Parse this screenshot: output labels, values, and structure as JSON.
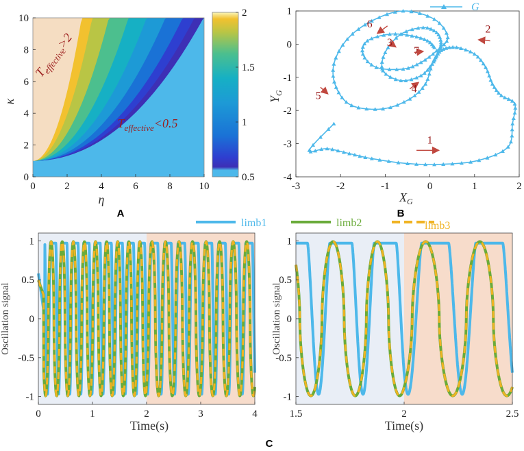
{
  "colors": {
    "limb1": "#4db8ea",
    "limb2": "#6aab3a",
    "limb3": "#f0b323",
    "shade_blue": "#e9eef6",
    "shade_orange": "#f7dccb",
    "annotation": "#9b1c1c",
    "arrow": "#c0483f",
    "heat_bg": "#4db8ea",
    "heat_wedge": "#f5ddc2"
  },
  "chart_data": [
    {
      "id": "A",
      "type": "heatmap",
      "panel_label": "A",
      "xlabel": "η",
      "ylabel": "κ",
      "xlim": [
        0,
        10
      ],
      "ylim": [
        0,
        10
      ],
      "xticks": [
        0,
        2,
        4,
        6,
        8,
        10
      ],
      "yticks": [
        0,
        2,
        4,
        6,
        8,
        10
      ],
      "colorbar": {
        "min": 0.5,
        "max": 2,
        "ticks": [
          0.5,
          1,
          1.5,
          2
        ]
      },
      "annotations": [
        {
          "base": "T",
          "sub": "effective",
          "tail": ">2",
          "x": 1.4,
          "y": 7.5,
          "angle": -52
        },
        {
          "base": "T",
          "sub": "effective",
          "tail": "<0.5",
          "x": 6.7,
          "y": 3.1,
          "angle": 0
        }
      ]
    },
    {
      "id": "B",
      "type": "line",
      "panel_label": "B",
      "xlabel_base": "X",
      "xlabel_sub": "G",
      "ylabel_base": "Y",
      "ylabel_sub": "G",
      "xlim": [
        -3,
        2
      ],
      "ylim": [
        -4,
        1
      ],
      "xticks": [
        -3,
        -2,
        -1,
        0,
        1,
        2
      ],
      "yticks": [
        -4,
        -3,
        -2,
        -1,
        0,
        1
      ],
      "legend": "G",
      "path_points": [
        [
          -2.15,
          -2.4
        ],
        [
          -2.7,
          -3.2
        ],
        [
          -2.3,
          -3.15
        ],
        [
          -1.8,
          -3.3
        ],
        [
          -1.3,
          -3.45
        ],
        [
          -0.5,
          -3.6
        ],
        [
          0.3,
          -3.62
        ],
        [
          1.1,
          -3.5
        ],
        [
          1.75,
          -3.1
        ],
        [
          1.85,
          -2.4
        ],
        [
          1.9,
          -1.8
        ],
        [
          1.6,
          -1.55
        ],
        [
          1.4,
          -1.2
        ],
        [
          1.25,
          -0.7
        ],
        [
          1.0,
          -0.3
        ],
        [
          0.6,
          -0.1
        ],
        [
          0.3,
          -0.15
        ],
        [
          0.15,
          -0.35
        ],
        [
          0.05,
          -0.6
        ],
        [
          -0.2,
          -0.95
        ],
        [
          -0.65,
          -1.1
        ],
        [
          -1.05,
          -0.8
        ],
        [
          -1.0,
          -0.25
        ],
        [
          -0.65,
          0.3
        ],
        [
          -0.15,
          0.5
        ],
        [
          0.15,
          0.35
        ],
        [
          0.25,
          0.05
        ],
        [
          0.2,
          -0.2
        ],
        [
          0.05,
          -0.6
        ],
        [
          -0.1,
          -1.2
        ],
        [
          -0.45,
          -1.65
        ],
        [
          -1.05,
          -1.95
        ],
        [
          -1.75,
          -1.85
        ],
        [
          -2.1,
          -1.3
        ],
        [
          -2.15,
          -0.6
        ],
        [
          -1.85,
          0.15
        ],
        [
          -1.3,
          0.7
        ],
        [
          -0.6,
          1.0
        ],
        [
          0.1,
          0.75
        ],
        [
          0.4,
          0.2
        ],
        [
          0.15,
          -0.2
        ],
        [
          -0.2,
          -0.55
        ],
        [
          -0.6,
          -0.75
        ],
        [
          -1.2,
          -0.7
        ],
        [
          -1.5,
          -0.3
        ],
        [
          -1.4,
          0.1
        ],
        [
          -0.9,
          0.3
        ],
        [
          -0.4,
          0.25
        ],
        [
          -0.05,
          0.1
        ],
        [
          0.1,
          -0.1
        ]
      ],
      "annotations": [
        {
          "text": "1",
          "x": 0.0,
          "y": -3.0,
          "dx": 0.8,
          "dy": 0,
          "arrow_x": -0.3,
          "arrow_y": -3.2
        },
        {
          "text": "2",
          "x": 1.3,
          "y": 0.35,
          "dx": -0.4,
          "dy": 0.05,
          "arrow_x": 1.35,
          "arrow_y": 0.1
        },
        {
          "text": "3",
          "x": -0.9,
          "y": -0.05,
          "dx": 0.2,
          "dy": -0.2,
          "arrow_x": -0.9,
          "arrow_y": 0.05
        },
        {
          "text": "4",
          "x": -0.35,
          "y": -1.45,
          "dx": 0.3,
          "dy": 0.3,
          "arrow_x": -0.45,
          "arrow_y": -1.35
        },
        {
          "text": "5",
          "x": -2.5,
          "y": -1.65,
          "dx": 0.25,
          "dy": -0.3,
          "arrow_x": -2.45,
          "arrow_y": -1.3
        },
        {
          "text": "6",
          "x": -1.35,
          "y": 0.5,
          "dx": -0.35,
          "dy": -0.35,
          "arrow_x": -0.95,
          "arrow_y": 0.55
        },
        {
          "text": "7",
          "x": -0.3,
          "y": -0.3,
          "dx": 0.3,
          "dy": 0.05,
          "arrow_x": -0.35,
          "arrow_y": -0.25
        }
      ]
    },
    {
      "id": "C-left",
      "type": "line",
      "xlabel": "Time(s)",
      "ylabel": "Oscillation signal",
      "xlim": [
        0,
        4
      ],
      "ylim": [
        -1.1,
        1.1
      ],
      "xticks": [
        0,
        1,
        2,
        3,
        4
      ],
      "yticks": [
        -1,
        -0.5,
        0,
        0.5,
        1
      ],
      "shaded": [
        {
          "from": 0,
          "to": 2,
          "color": "shade_blue"
        },
        {
          "from": 2,
          "to": 4,
          "color": "shade_orange"
        }
      ]
    },
    {
      "id": "C-right",
      "type": "line",
      "xlabel": "Time(s)",
      "ylabel": "Oscillation signal",
      "xlim": [
        1.5,
        2.5
      ],
      "ylim": [
        -1.1,
        1.1
      ],
      "xticks": [
        1.5,
        2,
        2.5
      ],
      "yticks": [
        -1,
        -0.5,
        0,
        0.5,
        1
      ],
      "shaded": [
        {
          "from": 1.5,
          "to": 2,
          "color": "shade_blue"
        },
        {
          "from": 2,
          "to": 2.5,
          "color": "shade_orange"
        }
      ]
    }
  ],
  "legend_C": [
    "limb1",
    "limb2",
    "limb3"
  ],
  "panel_C_label": "C",
  "series_model": {
    "period_phase1_s": 0.205,
    "period_phase2_s": 0.25,
    "switch_time_s": 2,
    "limb1_description": "stays near 1 with brief deep dips to -1 each cycle",
    "limb23_description": "identical in-phase, near-sinusoidal swing between -1 and 1"
  }
}
